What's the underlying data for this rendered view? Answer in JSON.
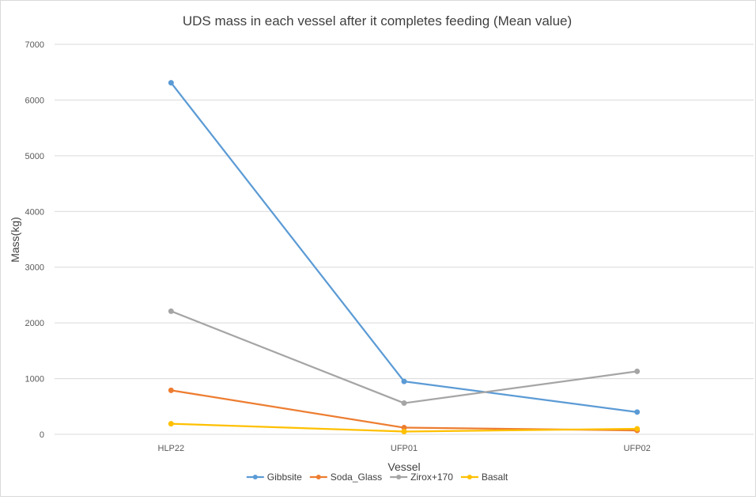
{
  "chart_data": {
    "type": "line",
    "title": "UDS mass in each vessel after it completes feeding (Mean value)",
    "xlabel": "Vessel",
    "ylabel": "Mass(kg)",
    "categories": [
      "HLP22",
      "UFP01",
      "UFP02"
    ],
    "ylim": [
      0,
      7000
    ],
    "yticks": [
      0,
      1000,
      2000,
      3000,
      4000,
      5000,
      6000,
      7000
    ],
    "grid": true,
    "legend_position": "bottom",
    "series": [
      {
        "name": "Gibbsite",
        "color": "#5B9BD5",
        "values": [
          6310,
          950,
          400
        ]
      },
      {
        "name": "Soda_Glass",
        "color": "#ED7D31",
        "values": [
          790,
          120,
          70
        ]
      },
      {
        "name": "Zirox+170",
        "color": "#A5A5A5",
        "values": [
          2210,
          560,
          1130
        ]
      },
      {
        "name": "Basalt",
        "color": "#FFC000",
        "values": [
          190,
          50,
          100
        ]
      }
    ]
  }
}
